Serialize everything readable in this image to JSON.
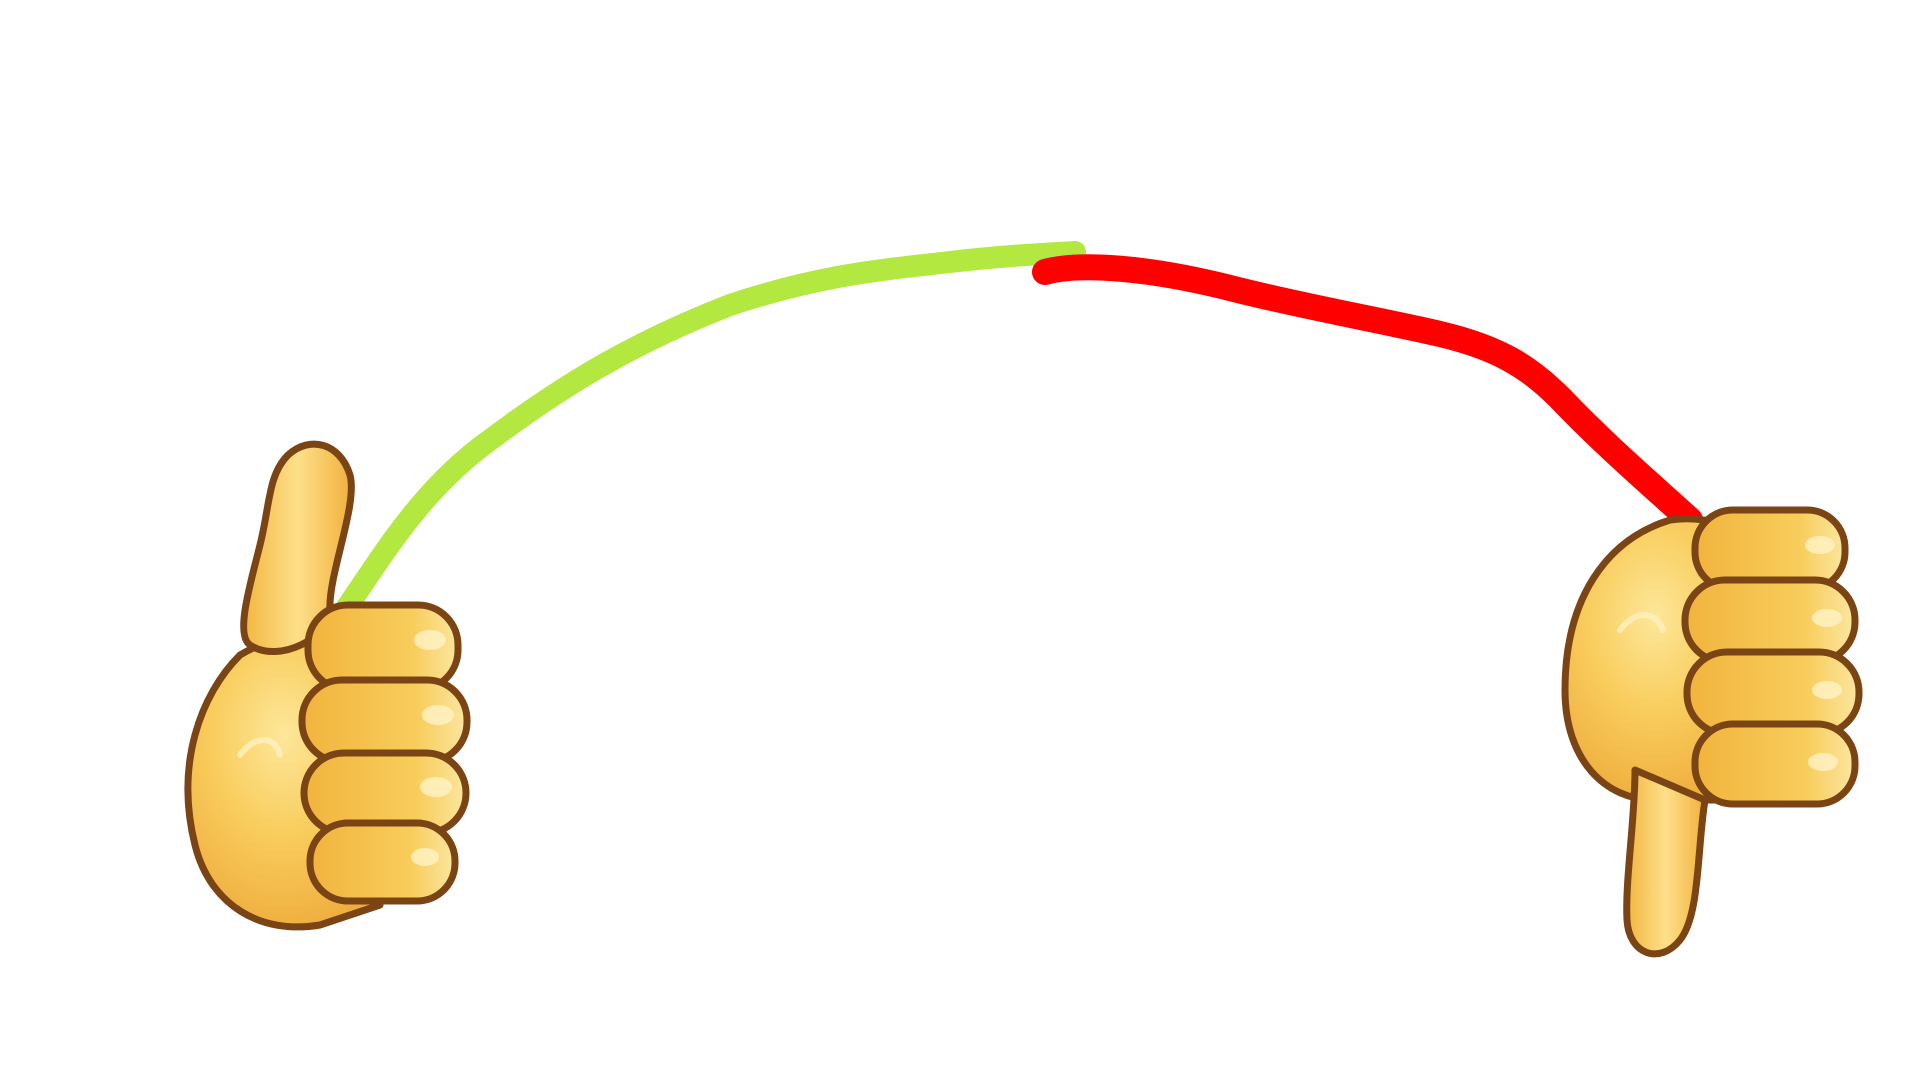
{
  "scene": {
    "background": "#ffffff",
    "left_hand": {
      "icon": "thumbs-up-icon"
    },
    "right_hand": {
      "icon": "thumbs-down-icon"
    },
    "arc": {
      "left_color": "#b3e841",
      "right_color": "#ff0000"
    },
    "hand_colors": {
      "skin": "#f7c14e",
      "skin_light": "#fbe08d",
      "skin_shadow": "#e39a2a",
      "outline": "#7b4414"
    }
  }
}
